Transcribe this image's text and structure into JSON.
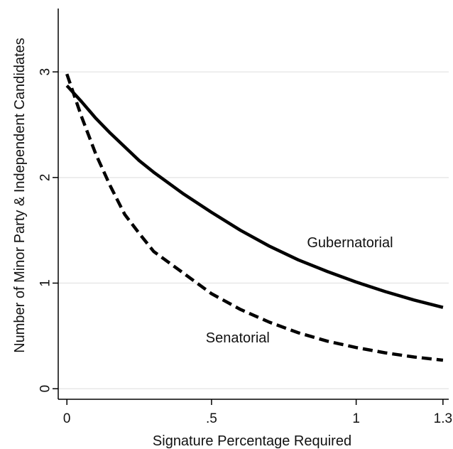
{
  "chart_data": {
    "type": "line",
    "title": "",
    "xlabel": "Signature Percentage Required",
    "ylabel": "Number of Minor Party & Independent Candidates",
    "xlim": [
      -0.03,
      1.32
    ],
    "ylim": [
      -0.1,
      3.6
    ],
    "x_ticks": [
      {
        "value": 0,
        "label": "0"
      },
      {
        "value": 0.5,
        "label": ".5"
      },
      {
        "value": 1,
        "label": "1"
      },
      {
        "value": 1.3,
        "label": "1.3"
      }
    ],
    "y_ticks": [
      {
        "value": 0,
        "label": "0"
      },
      {
        "value": 1,
        "label": "1"
      },
      {
        "value": 2,
        "label": "2"
      },
      {
        "value": 3,
        "label": "3"
      }
    ],
    "grid": "horizontal",
    "legend": "none",
    "series": [
      {
        "style": "solid",
        "color": "#000000",
        "x": [
          0,
          0.05,
          0.1,
          0.15,
          0.2,
          0.25,
          0.3,
          0.4,
          0.5,
          0.6,
          0.7,
          0.8,
          0.9,
          1.0,
          1.1,
          1.2,
          1.3
        ],
        "y": [
          2.87,
          2.72,
          2.56,
          2.42,
          2.29,
          2.16,
          2.05,
          1.85,
          1.67,
          1.5,
          1.35,
          1.22,
          1.11,
          1.01,
          0.92,
          0.84,
          0.77
        ]
      },
      {
        "style": "dashed",
        "color": "#000000",
        "x": [
          0,
          0.05,
          0.1,
          0.15,
          0.2,
          0.25,
          0.3,
          0.4,
          0.5,
          0.6,
          0.7,
          0.8,
          0.9,
          1.0,
          1.1,
          1.2,
          1.3
        ],
        "y": [
          2.98,
          2.58,
          2.22,
          1.92,
          1.65,
          1.47,
          1.3,
          1.1,
          0.9,
          0.75,
          0.63,
          0.53,
          0.45,
          0.39,
          0.34,
          0.3,
          0.27
        ]
      }
    ],
    "annotations": [
      {
        "text": "Gubernatorial",
        "x": 0.83,
        "y": 1.38
      },
      {
        "text": "Senatorial",
        "x": 0.48,
        "y": 0.48
      }
    ]
  }
}
